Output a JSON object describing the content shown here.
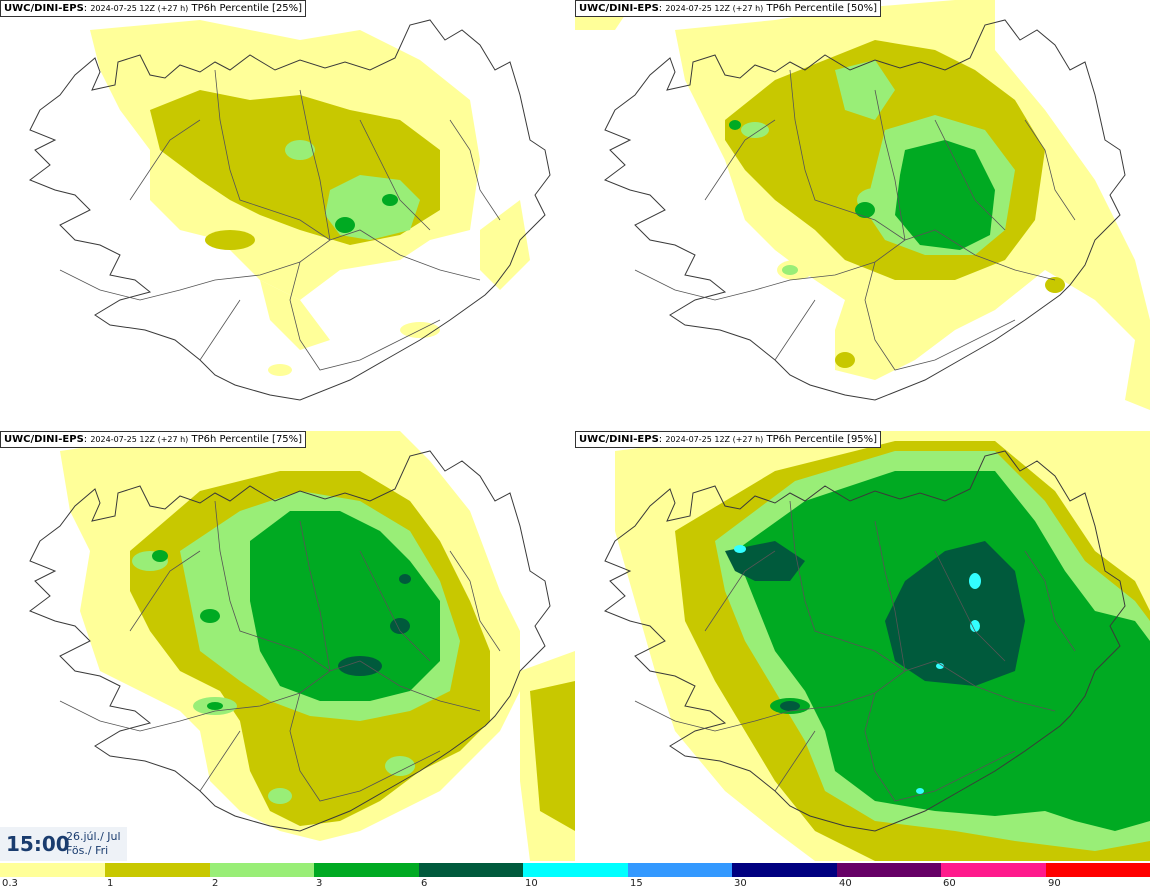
{
  "panels": [
    {
      "model": "UWC/DINI-EPS",
      "run": "2024-07-25 12Z (+27 h)",
      "field": "TP6h Percentile",
      "pct": "[25%]"
    },
    {
      "model": "UWC/DINI-EPS",
      "run": "2024-07-25 12Z (+27 h)",
      "field": "TP6h Percentile",
      "pct": "[50%]"
    },
    {
      "model": "UWC/DINI-EPS",
      "run": "2024-07-25 12Z (+27 h)",
      "field": "TP6h Percentile",
      "pct": "[75%]"
    },
    {
      "model": "UWC/DINI-EPS",
      "run": "2024-07-25 12Z (+27 h)",
      "field": "TP6h Percentile",
      "pct": "[95%]"
    }
  ],
  "valid": {
    "time": "15:00",
    "date_line1": "26.júl./ Jul",
    "date_line2": "Fös./ Fri"
  },
  "scale": {
    "ticks": [
      "0.3",
      "1",
      "2",
      "3",
      "6",
      "10",
      "15",
      "30",
      "40",
      "60",
      "90"
    ],
    "colors": [
      "#ffff99",
      "#c8c800",
      "#99ee77",
      "#00aa22",
      "#005a3c",
      "#00ffff",
      "#3399ff",
      "#000080",
      "#660066",
      "#ff1a8c",
      "#ff0000"
    ]
  },
  "colors": {
    "outline": "#3a3a3a",
    "road": "#555555",
    "c1": "#ffff99",
    "c2": "#c8c800",
    "c3": "#99ee77",
    "c4": "#00aa22",
    "c5": "#005a3c",
    "c6": "#33ffff"
  }
}
